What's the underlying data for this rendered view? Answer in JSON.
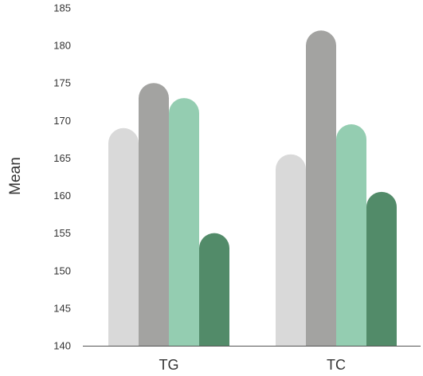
{
  "chart_data": {
    "type": "bar",
    "ylabel": "Mean",
    "ylim": [
      140,
      185
    ],
    "yticks": [
      140,
      145,
      150,
      155,
      160,
      165,
      170,
      175,
      180,
      185
    ],
    "categories": [
      "TG",
      "TC"
    ],
    "series": [
      {
        "values": [
          169,
          165.5
        ],
        "color": "#d9d9d9"
      },
      {
        "values": [
          175,
          182
        ],
        "color": "#a3a3a1"
      },
      {
        "values": [
          173,
          169.5
        ],
        "color": "#94cdb1"
      },
      {
        "values": [
          155,
          160.5
        ],
        "color": "#528b69"
      }
    ],
    "bar_style": "rounded-top",
    "grid": false,
    "legend": "none"
  }
}
